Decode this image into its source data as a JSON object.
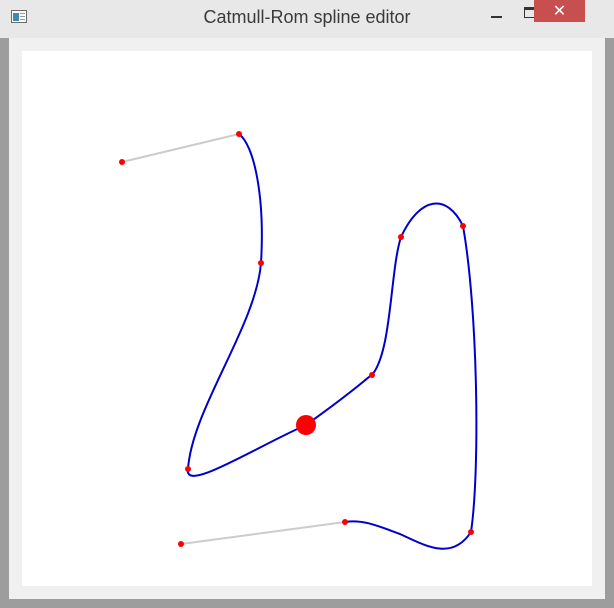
{
  "window": {
    "title": "Catmull-Rom spline editor",
    "close_glyph": "✕"
  },
  "icons": {
    "app": "app-window-icon",
    "minimize": "minimize-icon",
    "maximize": "maximize-icon",
    "close": "close-icon"
  },
  "colors": {
    "curve": "#0000cc",
    "control_point": "#ff0000",
    "tangent_line": "#cccccc",
    "close_button": "#c74f4f"
  },
  "spline": {
    "selected_index": 5
  }
}
